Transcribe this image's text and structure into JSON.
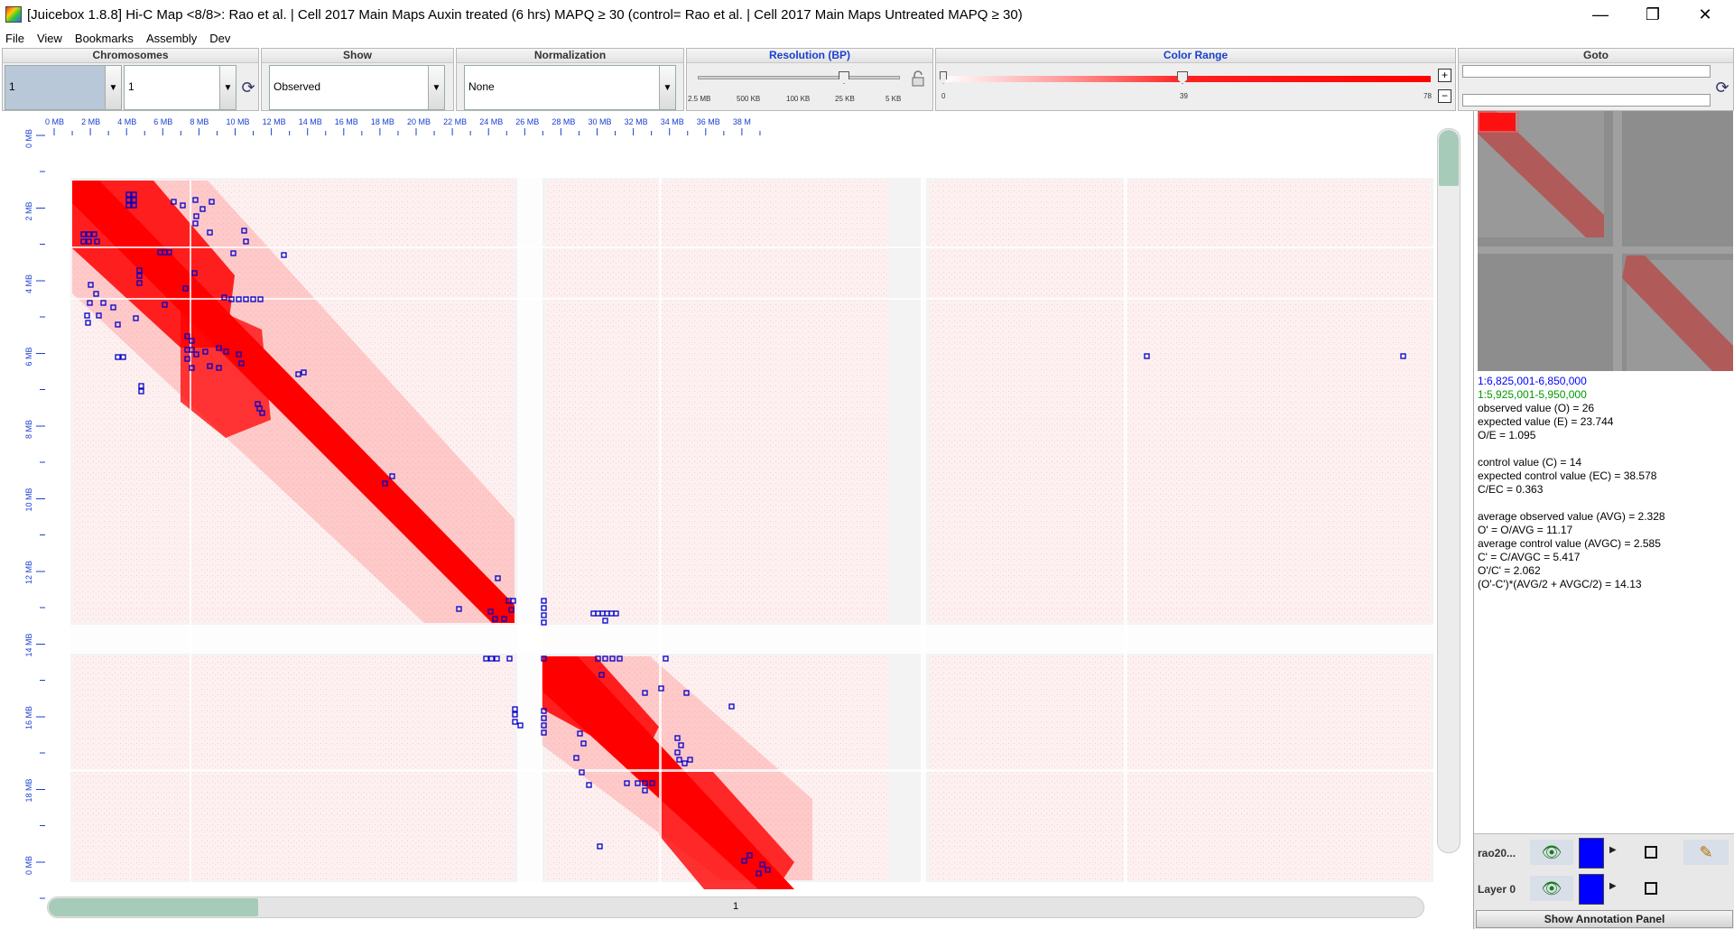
{
  "window": {
    "title": "[Juicebox 1.8.8] Hi-C Map <8/8>: Rao et al. | Cell 2017  Main Maps Auxin treated (6 hrs) MAPQ ≥ 30  (control=  Rao et al. | Cell 2017  Main Maps Untreated MAPQ ≥ 30)",
    "minimize": "—",
    "maximize": "❐",
    "close": "✕"
  },
  "menu": [
    "File",
    "View",
    "Bookmarks",
    "Assembly",
    "Dev"
  ],
  "toolbar": {
    "chromosomes": {
      "header": "Chromosomes",
      "chrom1": "1",
      "chrom2": "1"
    },
    "show": {
      "header": "Show",
      "value": "Observed"
    },
    "normalization": {
      "header": "Normalization",
      "value": "None"
    },
    "resolution": {
      "header": "Resolution (BP)",
      "ticks": [
        "2.5 MB",
        "500 KB",
        "100 KB",
        "25 KB",
        "5 KB"
      ],
      "selected_index": 3,
      "lock_icon": "lock-icon"
    },
    "color_range": {
      "header": "Color Range",
      "min": "0",
      "mid": "39",
      "max": "78",
      "plus": "+",
      "minus": "−",
      "thumb_fraction": 0.5
    },
    "goto": {
      "header": "Goto",
      "field1": "",
      "field2": ""
    }
  },
  "heatmap": {
    "x_ticks": [
      "0 MB",
      "2 MB",
      "4 MB",
      "6 MB",
      "8 MB",
      "10 MB",
      "12 MB",
      "14 MB",
      "16 MB",
      "18 MB",
      "20 MB",
      "22 MB",
      "24 MB",
      "26 MB",
      "28 MB",
      "30 MB",
      "32 MB",
      "34 MB",
      "36 MB",
      "38 M"
    ],
    "y_ticks": [
      "0 MB",
      "2 MB",
      "4 MB",
      "6 MB",
      "8 MB",
      "10 MB",
      "12 MB",
      "14 MB",
      "16 MB",
      "18 MB",
      "0 MB"
    ],
    "right_label": "1",
    "bottom_label": "1",
    "map_color": "#ff0000"
  },
  "info": {
    "coord_x": "1:6,825,001-6,850,000",
    "coord_y": "1:5,925,001-5,950,000",
    "lines": [
      "observed value (O) = 26",
      "expected value (E) = 23.744",
      "O/E = 1.095",
      "",
      "control value (C) = 14",
      "expected control value (EC) = 38.578",
      "C/EC = 0.363",
      "",
      "average observed value (AVG) = 2.328",
      "O' = O/AVG = 11.17",
      "average control value (AVGC) = 2.585",
      "C' = C/AVGC = 5.417",
      "O'/C' = 2.062",
      "(O'-C')*(AVG/2 + AVGC/2) = 14.13"
    ],
    "coord_x_color": "#0000ff",
    "coord_y_color": "#009900"
  },
  "layers": [
    {
      "name": "rao20...",
      "color": "#0000ff"
    },
    {
      "name": "Layer 0",
      "color": "#0000ff"
    }
  ],
  "annotation_button": "Show Annotation Panel"
}
